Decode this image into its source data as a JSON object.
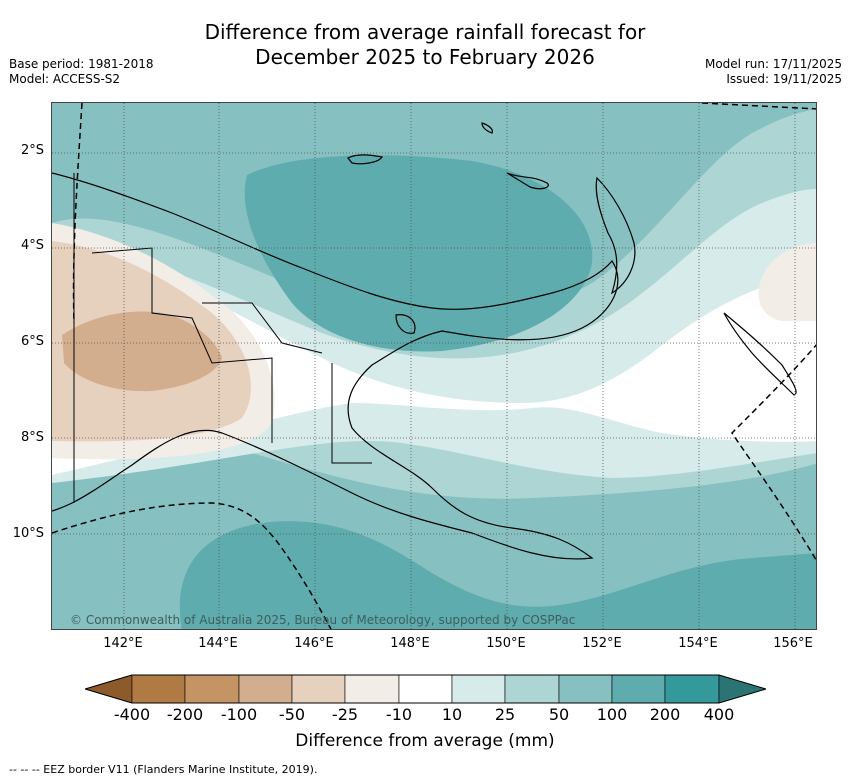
{
  "title_line1": "Difference from average rainfall forecast for",
  "title_line2": "December 2025 to February 2026",
  "meta": {
    "base_period": "Base period: 1981-2018",
    "model": "Model: ACCESS-S2",
    "model_run": "Model run: 17/11/2025",
    "issued": "Issued: 19/11/2025"
  },
  "map": {
    "lat_labels": [
      "2°S",
      "4°S",
      "6°S",
      "8°S",
      "10°S"
    ],
    "lon_labels": [
      "142°E",
      "144°E",
      "146°E",
      "148°E",
      "150°E",
      "152°E",
      "154°E",
      "156°E"
    ],
    "copyright": "© Commonwealth of Australia 2025, Bureau of Meteorology, supported by COSPPac"
  },
  "colorbar": {
    "ticks": [
      "-400",
      "-200",
      "-100",
      "-50",
      "-25",
      "-10",
      "10",
      "25",
      "50",
      "100",
      "200",
      "400"
    ],
    "colors": [
      "#8c5a2b",
      "#b07a44",
      "#c49464",
      "#d3ae8e",
      "#e6d1bf",
      "#f2ede6",
      "#ffffff",
      "#d6ebea",
      "#acd5d4",
      "#86c0c0",
      "#5eacad",
      "#33999a",
      "#2b7473"
    ],
    "label": "Difference from average (mm)"
  },
  "legend_text": "--  --  -- EEZ border V11 (Flanders Marine Institute, 2019)."
}
